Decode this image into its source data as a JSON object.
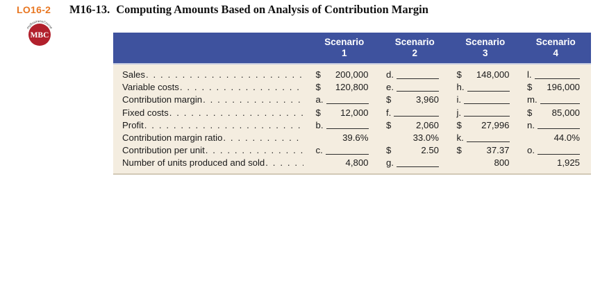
{
  "page": {
    "lo_label": "LO16-2",
    "exercise_number": "M16-13.",
    "title": "Computing Amounts Based on Analysis of Contribution Margin"
  },
  "logo": {
    "arc_text": "myBusinessCourse",
    "initials": "MBC"
  },
  "colors": {
    "accent_orange": "#e87722",
    "logo_red": "#b1202c",
    "header_bg": "#3e529e",
    "body_bg": "#f4ede0"
  },
  "table": {
    "column_headers": [
      {
        "title": "Scenario",
        "number": "1"
      },
      {
        "title": "Scenario",
        "number": "2"
      },
      {
        "title": "Scenario",
        "number": "3"
      },
      {
        "title": "Scenario",
        "number": "4"
      }
    ],
    "rows": [
      {
        "label": "Sales",
        "cells": [
          {
            "type": "money",
            "symbol": "$",
            "value": "200,000"
          },
          {
            "type": "blank",
            "letter": "d."
          },
          {
            "type": "money",
            "symbol": "$",
            "value": "148,000"
          },
          {
            "type": "blank",
            "letter": "l."
          }
        ]
      },
      {
        "label": "Variable costs",
        "cells": [
          {
            "type": "money",
            "symbol": "$",
            "value": "120,800"
          },
          {
            "type": "blank",
            "letter": "e."
          },
          {
            "type": "blank",
            "letter": "h."
          },
          {
            "type": "money",
            "symbol": "$",
            "value": "196,000"
          }
        ]
      },
      {
        "label": "Contribution margin",
        "cells": [
          {
            "type": "blank",
            "letter": "a."
          },
          {
            "type": "money",
            "symbol": "$",
            "value": "3,960"
          },
          {
            "type": "blank",
            "letter": "i."
          },
          {
            "type": "blank",
            "letter": "m."
          }
        ]
      },
      {
        "label": "Fixed costs",
        "cells": [
          {
            "type": "money",
            "symbol": "$",
            "value": "12,000"
          },
          {
            "type": "blank",
            "letter": "f."
          },
          {
            "type": "blank",
            "letter": "j."
          },
          {
            "type": "money",
            "symbol": "$",
            "value": "85,000"
          }
        ]
      },
      {
        "label": "Profit",
        "cells": [
          {
            "type": "blank",
            "letter": "b."
          },
          {
            "type": "money",
            "symbol": "$",
            "value": "2,060"
          },
          {
            "type": "money",
            "symbol": "$",
            "value": "27,996"
          },
          {
            "type": "blank",
            "letter": "n."
          }
        ]
      },
      {
        "label": "Contribution margin ratio",
        "cells": [
          {
            "type": "plain",
            "value": "39.6%"
          },
          {
            "type": "plain",
            "value": "33.0%"
          },
          {
            "type": "blank",
            "letter": "k."
          },
          {
            "type": "plain",
            "value": "44.0%"
          }
        ]
      },
      {
        "label": "Contribution per unit",
        "cells": [
          {
            "type": "blank",
            "letter": "c."
          },
          {
            "type": "money",
            "symbol": "$",
            "value": "2.50"
          },
          {
            "type": "money",
            "symbol": "$",
            "value": "37.37"
          },
          {
            "type": "blank",
            "letter": "o."
          }
        ]
      },
      {
        "label": "Number of units produced and sold",
        "cells": [
          {
            "type": "plain",
            "value": "4,800"
          },
          {
            "type": "blank",
            "letter": "g."
          },
          {
            "type": "plain",
            "value": "800"
          },
          {
            "type": "plain",
            "value": "1,925"
          }
        ]
      }
    ]
  }
}
